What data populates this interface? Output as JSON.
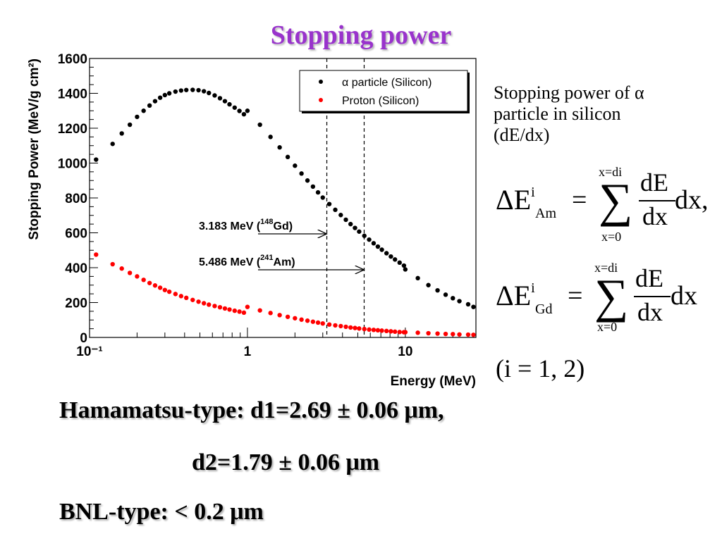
{
  "slide": {
    "title": "Stopping power",
    "description_lines": [
      "Stopping power of α",
      "particle in silicon",
      "(dE/dx)"
    ],
    "equations": [
      {
        "delta": "ΔE",
        "sup": "i",
        "sub": "Am",
        "equals": "=",
        "sigma": "∑",
        "upper": "x=di",
        "lower": "x=0",
        "numerator": "dE",
        "denominator": "dx",
        "tail": "dx,"
      },
      {
        "delta": "ΔE",
        "sup": "i",
        "sub": "Gd",
        "equals": "=",
        "sigma": "∑",
        "upper": "x=di",
        "lower": "x=0",
        "numerator": "dE",
        "denominator": "dx",
        "tail": "dx"
      }
    ],
    "i_range": "(i = 1, 2)",
    "bottom_lines": [
      "Hamamatsu-type: d1=2.69 ± 0.06 μm,",
      "d2=1.79 ± 0.06 μm",
      "BNL-type: < 0.2 μm"
    ]
  },
  "chart_data": {
    "type": "scatter",
    "xlabel": "Energy (MeV)",
    "ylabel": "Stopping Power (MeV/g cm²)",
    "xscale": "log",
    "xlim": [
      0.1,
      28
    ],
    "ylim": [
      0,
      1600
    ],
    "grid": false,
    "legend_position": "top-right",
    "x_tick_labels": [
      "10⁻¹",
      "1",
      "10"
    ],
    "y_tick_labels": [
      "0",
      "200",
      "400",
      "600",
      "800",
      "1000",
      "1200",
      "1400",
      "1600"
    ],
    "series": [
      {
        "name": "α particle (Silicon)",
        "color": "#000000",
        "x": [
          0.11,
          0.14,
          0.16,
          0.18,
          0.2,
          0.22,
          0.24,
          0.26,
          0.28,
          0.3,
          0.32,
          0.35,
          0.38,
          0.41,
          0.45,
          0.49,
          0.53,
          0.57,
          0.62,
          0.67,
          0.72,
          0.77,
          0.83,
          0.89,
          0.95,
          1.0,
          1.2,
          1.4,
          1.6,
          1.8,
          2.0,
          2.2,
          2.4,
          2.6,
          2.8,
          3.0,
          3.3,
          3.6,
          3.9,
          4.2,
          4.5,
          4.8,
          5.1,
          5.5,
          5.9,
          6.3,
          6.7,
          7.1,
          7.6,
          8.1,
          8.6,
          9.2,
          9.8,
          10.0,
          12.0,
          14.0,
          16.0,
          18.0,
          20.0,
          22.0,
          25.0,
          27.0
        ],
        "y": [
          1020,
          1110,
          1170,
          1220,
          1265,
          1300,
          1330,
          1355,
          1375,
          1390,
          1400,
          1410,
          1416,
          1419,
          1420,
          1418,
          1412,
          1402,
          1388,
          1372,
          1355,
          1337,
          1318,
          1299,
          1280,
          1300,
          1220,
          1150,
          1090,
          1035,
          985,
          940,
          900,
          865,
          832,
          802,
          765,
          732,
          702,
          675,
          650,
          628,
          607,
          583,
          561,
          540,
          521,
          503,
          483,
          464,
          447,
          429,
          412,
          390,
          340,
          300,
          270,
          245,
          225,
          208,
          190,
          175
        ]
      },
      {
        "name": "Proton (Silicon)",
        "color": "#ff0000",
        "x": [
          0.11,
          0.14,
          0.16,
          0.18,
          0.2,
          0.22,
          0.24,
          0.26,
          0.28,
          0.3,
          0.32,
          0.35,
          0.38,
          0.41,
          0.45,
          0.49,
          0.53,
          0.57,
          0.62,
          0.67,
          0.72,
          0.77,
          0.83,
          0.89,
          0.95,
          1.0,
          1.2,
          1.4,
          1.6,
          1.8,
          2.0,
          2.2,
          2.4,
          2.6,
          2.8,
          3.0,
          3.3,
          3.6,
          3.9,
          4.2,
          4.5,
          4.8,
          5.1,
          5.5,
          5.9,
          6.3,
          6.7,
          7.1,
          7.6,
          8.1,
          8.6,
          9.2,
          9.8,
          10.0,
          12.0,
          14.0,
          16.0,
          18.0,
          20.0,
          22.0,
          25.0,
          27.0
        ],
        "y": [
          475,
          420,
          395,
          370,
          350,
          330,
          312,
          298,
          285,
          272,
          262,
          249,
          237,
          227,
          215,
          205,
          196,
          188,
          180,
          173,
          166,
          160,
          153,
          148,
          142,
          175,
          155,
          140,
          128,
          118,
          110,
          102,
          96,
          90,
          85,
          80,
          74,
          69,
          65,
          61,
          57,
          54,
          51,
          48,
          45,
          43,
          41,
          39,
          37,
          35,
          33,
          31,
          30,
          30,
          27,
          24,
          22,
          20,
          19,
          17,
          16,
          15
        ]
      }
    ],
    "annotations": [
      {
        "label": "3.183 MeV (",
        "mass": "148",
        "element": "Gd)",
        "x": 3.183
      },
      {
        "label": "5.486 MeV (",
        "mass": "241",
        "element": "Am)",
        "x": 5.486
      }
    ]
  }
}
